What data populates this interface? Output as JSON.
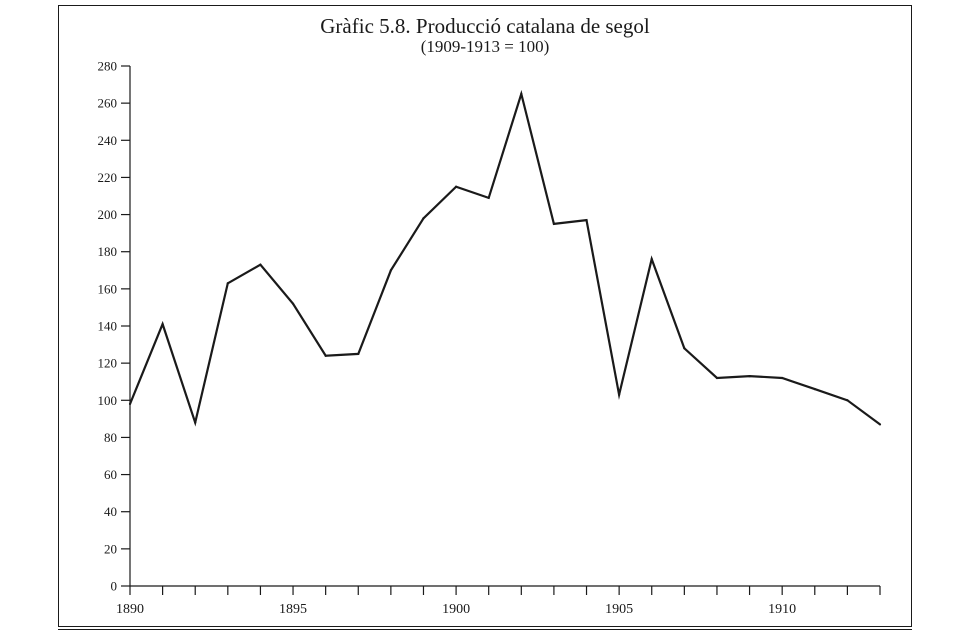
{
  "chart_data": {
    "type": "line",
    "title": "Gràfic 5.8. Producció catalana de segol",
    "subtitle": "(1909-1913 = 100)",
    "xlabel": "",
    "ylabel": "",
    "xlim": [
      1890,
      1913
    ],
    "ylim": [
      0,
      280
    ],
    "x_ticks": [
      1890,
      1895,
      1900,
      1905,
      1910
    ],
    "y_ticks": [
      0,
      20,
      40,
      60,
      80,
      100,
      120,
      140,
      160,
      180,
      200,
      220,
      240,
      260,
      280
    ],
    "grid": false,
    "legend": "none",
    "line_color": "#1a1a1a",
    "series": [
      {
        "x": [
          1890,
          1891,
          1892,
          1893,
          1894,
          1895,
          1896,
          1897,
          1898,
          1899,
          1900,
          1901,
          1902,
          1903,
          1904,
          1905,
          1906,
          1907,
          1908,
          1909,
          1910,
          1911,
          1912,
          1913
        ],
        "values": [
          98,
          141,
          88,
          163,
          173,
          152,
          124,
          125,
          170,
          198,
          215,
          209,
          265,
          195,
          197,
          103,
          176,
          128,
          112,
          113,
          112,
          106,
          100,
          87
        ]
      }
    ]
  }
}
